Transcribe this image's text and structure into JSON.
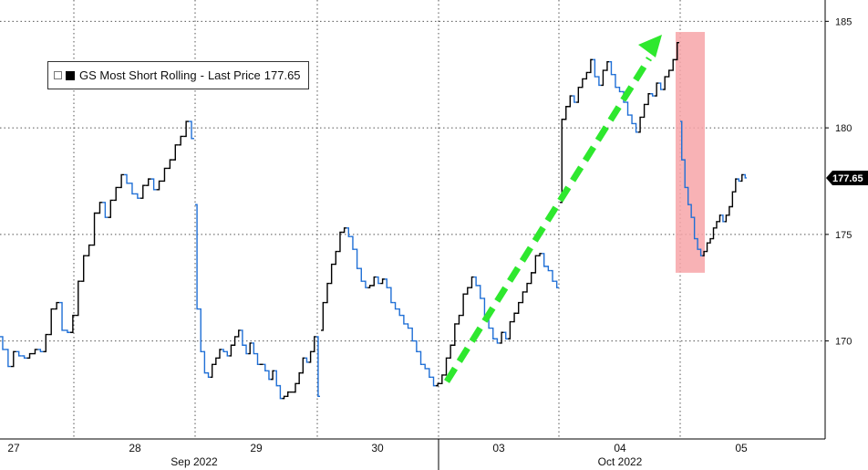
{
  "chart_data": {
    "type": "line",
    "title": "",
    "xlabel": "",
    "ylabel": "",
    "ylim": [
      165.4,
      186
    ],
    "yticks": [
      170,
      175,
      180,
      185
    ],
    "x_tick_labels": [
      "27",
      "28",
      "29",
      "30",
      "03",
      "04",
      "05"
    ],
    "x_group_labels": [
      "Sep 2022",
      "Oct 2022"
    ],
    "legend": {
      "series_name": "GS Most Short Rolling",
      "label": "Last Price",
      "value": "177.65"
    },
    "last_price_label": "177.65",
    "grid": true,
    "colors": {
      "up": "#000000",
      "down": "#1f6fd6",
      "arrow": "#2ee82e",
      "highlight": "#f7a4a8",
      "last_badge": "#000000"
    },
    "series": [
      {
        "name": "GS Most Short Rolling",
        "segments": [
          {
            "day": "27",
            "values": [
              170.2,
              169.6,
              168.8,
              169.5,
              169.3,
              169.2,
              169.4,
              169.6,
              169.5,
              170.3,
              171.5,
              171.8,
              170.5,
              170.4,
              171.2,
              172.8,
              174.0,
              174.5,
              176.0,
              176.5,
              175.8,
              176.6,
              177.2,
              177.8,
              177.4,
              176.9,
              176.7,
              177.3,
              177.6,
              177.1,
              177.5,
              178.1,
              178.5,
              179.2,
              179.6,
              180.3,
              179.5
            ]
          },
          {
            "day": "28",
            "values": [
              176.4,
              171.5,
              169.5,
              168.5,
              168.3,
              168.9,
              169.2,
              169.6,
              169.5,
              169.3,
              169.8,
              170.2,
              170.5,
              169.8,
              169.4,
              169.9,
              169.4,
              168.9,
              168.9,
              168.6,
              168.2,
              168.6,
              167.9,
              167.3,
              167.4,
              167.6,
              167.6,
              168.0,
              168.5,
              169.2,
              169.0,
              169.5,
              170.2,
              167.4
            ]
          },
          {
            "day": "29",
            "values": [
              170.5,
              171.8,
              172.7,
              173.6,
              174.2,
              175.1,
              175.3,
              174.9,
              174.3,
              173.4,
              172.8,
              172.5,
              172.6,
              173.0,
              172.7,
              172.9,
              172.5,
              171.8,
              171.5,
              171.2,
              170.8,
              170.6,
              170.0,
              169.5,
              168.9,
              168.7,
              168.3,
              167.9,
              168.0,
              168.4,
              169.2,
              169.8,
              170.8,
              171.2,
              172.2,
              172.5,
              173.0,
              172.6,
              172.0,
              171.2,
              170.6,
              170.1,
              169.9,
              170.4,
              170.1,
              170.9,
              171.3,
              171.8,
              172.3,
              172.7,
              173.2,
              174.0,
              174.1,
              173.5,
              173.3,
              172.8,
              172.5
            ]
          },
          {
            "day": "03",
            "values": [
              176.5,
              180.4,
              181.0,
              181.5,
              181.2,
              181.9,
              182.3,
              182.6,
              183.2,
              182.4,
              182.0,
              182.7,
              183.1,
              182.5,
              181.9,
              181.7,
              181.2,
              180.6,
              180.2,
              179.8,
              180.5,
              181.1,
              181.6,
              181.5,
              182.1,
              181.8,
              182.4,
              182.7,
              183.2,
              184.0
            ]
          },
          {
            "day": "04",
            "values": [
              180.3,
              178.5,
              177.2,
              176.4,
              175.8,
              174.8,
              174.3,
              174.0,
              174.2,
              174.6,
              174.8,
              175.3,
              175.6,
              175.9,
              175.6,
              175.9,
              176.3,
              177.0,
              177.6,
              177.5,
              177.8,
              177.65
            ]
          }
        ]
      }
    ],
    "annotations": [
      {
        "type": "arrow",
        "from_day": "30",
        "to_day": "03",
        "description": "green dashed upward arrow"
      },
      {
        "type": "highlight",
        "day": "04",
        "y_range": [
          173.2,
          184.5
        ]
      }
    ]
  }
}
